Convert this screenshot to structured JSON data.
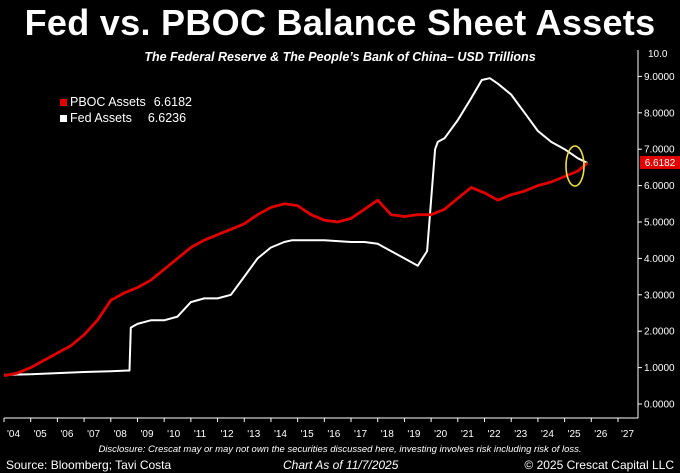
{
  "title": "Fed vs. PBOC Balance Sheet Assets",
  "subtitle": "The Federal Reserve & The People’s Bank of China– USD Trillions",
  "legend": [
    {
      "label": "PBOC Assets",
      "value": "6.6182",
      "color": "#e00000"
    },
    {
      "label": "Fed Assets",
      "value": "6.6236",
      "color": "#ffffff"
    }
  ],
  "last_value_tag": "6.6182",
  "disclosure": "Disclosure: Crescat may or may not own the securities discussed here, investing involves risk including risk of loss.",
  "footer": {
    "source": "Source: Bloomberg; Tavi Costa",
    "as_of": "Chart As of 11/7/2025",
    "copyright": "© 2025 Crescat Capital LLC"
  },
  "chart_data": {
    "type": "line",
    "x_axis": {
      "range": [
        2004.0,
        2027.6
      ],
      "tick_values": [
        2004,
        2005,
        2006,
        2007,
        2008,
        2009,
        2010,
        2011,
        2012,
        2013,
        2014,
        2015,
        2016,
        2017,
        2018,
        2019,
        2020,
        2021,
        2022,
        2023,
        2024,
        2025,
        2026,
        2027
      ],
      "tick_labels": [
        "'04",
        "'05",
        "'06",
        "'07",
        "'08",
        "'09",
        "'10",
        "'11",
        "'12",
        "'13",
        "'14",
        "'15",
        "'16",
        "'17",
        "'18",
        "'19",
        "'20",
        "'21",
        "'22",
        "'23",
        "'24",
        "'25",
        "'26",
        "'27"
      ]
    },
    "y_axis": {
      "range": [
        0,
        10
      ],
      "ticks": [
        0,
        1,
        2,
        3,
        4,
        5,
        6,
        7,
        8,
        9
      ],
      "tick_labels": [
        "0.0000",
        "1.0000",
        "2.0000",
        "3.0000",
        "4.0000",
        "5.0000",
        "6.0000",
        "7.0000",
        "8.0000",
        "9.0000"
      ],
      "top_partial_label": "10.0",
      "side": "right"
    },
    "grid": false,
    "legend_position": "top-left",
    "series": [
      {
        "name": "PBOC Assets",
        "color": "#e00000",
        "x": [
          2004.0,
          2004.5,
          2005.0,
          2005.5,
          2006.0,
          2006.5,
          2007.0,
          2007.5,
          2008.0,
          2008.5,
          2009.0,
          2009.5,
          2010.0,
          2010.5,
          2011.0,
          2011.5,
          2012.0,
          2012.5,
          2013.0,
          2013.5,
          2014.0,
          2014.5,
          2015.0,
          2015.5,
          2016.0,
          2016.5,
          2017.0,
          2017.5,
          2018.0,
          2018.5,
          2019.0,
          2019.5,
          2020.0,
          2020.5,
          2021.0,
          2021.5,
          2022.0,
          2022.5,
          2023.0,
          2023.5,
          2024.0,
          2024.5,
          2025.0,
          2025.5,
          2025.85
        ],
        "y": [
          0.78,
          0.85,
          1.0,
          1.2,
          1.4,
          1.6,
          1.9,
          2.3,
          2.85,
          3.05,
          3.2,
          3.4,
          3.7,
          4.0,
          4.3,
          4.5,
          4.65,
          4.8,
          4.95,
          5.2,
          5.4,
          5.5,
          5.45,
          5.2,
          5.05,
          5.0,
          5.1,
          5.35,
          5.6,
          5.2,
          5.15,
          5.2,
          5.2,
          5.35,
          5.65,
          5.95,
          5.8,
          5.6,
          5.75,
          5.85,
          6.0,
          6.1,
          6.25,
          6.4,
          6.6182
        ]
      },
      {
        "name": "Fed Assets",
        "color": "#ffffff",
        "x": [
          2004.0,
          2005.0,
          2006.0,
          2007.0,
          2008.0,
          2008.7,
          2008.75,
          2009.0,
          2009.5,
          2010.0,
          2010.5,
          2011.0,
          2011.5,
          2012.0,
          2012.5,
          2013.0,
          2013.5,
          2014.0,
          2014.5,
          2014.8,
          2015.5,
          2016.0,
          2017.0,
          2017.5,
          2018.0,
          2018.5,
          2019.0,
          2019.5,
          2019.85,
          2020.15,
          2020.25,
          2020.5,
          2021.0,
          2021.5,
          2021.9,
          2022.2,
          2022.5,
          2023.0,
          2023.2,
          2023.5,
          2024.0,
          2024.5,
          2025.0,
          2025.5,
          2025.85
        ],
        "y": [
          0.8,
          0.82,
          0.85,
          0.88,
          0.9,
          0.92,
          2.1,
          2.2,
          2.3,
          2.3,
          2.4,
          2.8,
          2.9,
          2.9,
          3.0,
          3.5,
          4.0,
          4.3,
          4.45,
          4.5,
          4.5,
          4.5,
          4.45,
          4.45,
          4.4,
          4.2,
          4.0,
          3.8,
          4.2,
          7.0,
          7.2,
          7.3,
          7.8,
          8.4,
          8.9,
          8.95,
          8.8,
          8.5,
          8.3,
          8.0,
          7.5,
          7.2,
          7.0,
          6.75,
          6.6236
        ]
      }
    ]
  }
}
